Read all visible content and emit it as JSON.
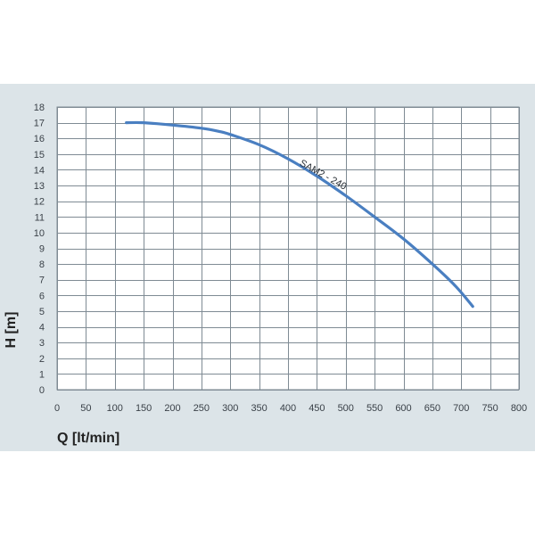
{
  "chart_data": {
    "type": "line",
    "title": "",
    "xlabel": "Q [lt/min]",
    "ylabel": "H [m]",
    "xlim": [
      0,
      800
    ],
    "ylim": [
      0,
      18
    ],
    "xticks": [
      0,
      50,
      100,
      150,
      200,
      250,
      300,
      350,
      400,
      450,
      500,
      550,
      600,
      650,
      700,
      750,
      800
    ],
    "yticks": [
      0,
      1,
      2,
      3,
      4,
      5,
      6,
      7,
      8,
      9,
      10,
      11,
      12,
      13,
      14,
      15,
      16,
      17,
      18
    ],
    "grid": true,
    "series": [
      {
        "name": "SAM2 - 240",
        "color": "#4a7fc1",
        "points": [
          [
            120,
            17.0
          ],
          [
            150,
            17.0
          ],
          [
            200,
            16.85
          ],
          [
            250,
            16.65
          ],
          [
            280,
            16.45
          ],
          [
            300,
            16.25
          ],
          [
            350,
            15.6
          ],
          [
            400,
            14.7
          ],
          [
            450,
            13.6
          ],
          [
            500,
            12.35
          ],
          [
            550,
            11.0
          ],
          [
            600,
            9.6
          ],
          [
            650,
            8.0
          ],
          [
            690,
            6.6
          ],
          [
            720,
            5.3
          ]
        ]
      }
    ]
  }
}
